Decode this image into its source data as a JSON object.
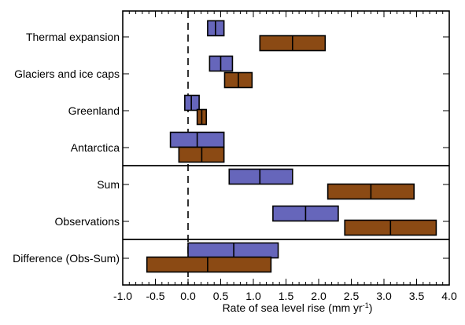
{
  "chart_data": {
    "type": "bar",
    "orientation": "horizontal",
    "chart_style": "range boxes with central estimate",
    "xlabel": "Rate of sea level rise (mm yr",
    "xlabel_superscript": "-1",
    "xlabel_suffix": ")",
    "xlim": [
      -1.0,
      4.0
    ],
    "xticks": [
      "-1.0",
      "-0.5",
      "0.0",
      "0.5",
      "1.0",
      "1.5",
      "2.0",
      "2.5",
      "3.0",
      "3.5",
      "4.0"
    ],
    "zero_line": "dashed",
    "grid": false,
    "legend": "none",
    "categories": [
      "Thermal expansion",
      "Glaciers and ice caps",
      "Greenland",
      "Antarctica",
      "Sum",
      "Observations",
      "Difference (Obs-Sum)"
    ],
    "group_separators": [
      "between Antarctica and Sum",
      "between Observations and Difference (Obs-Sum)"
    ],
    "series": [
      {
        "color": "#6666BB",
        "ranges": [
          {
            "category": "Thermal expansion",
            "low": 0.3,
            "mid": 0.42,
            "high": 0.55
          },
          {
            "category": "Glaciers and ice caps",
            "low": 0.33,
            "mid": 0.5,
            "high": 0.68
          },
          {
            "category": "Greenland",
            "low": -0.05,
            "mid": 0.05,
            "high": 0.17
          },
          {
            "category": "Antarctica",
            "low": -0.27,
            "mid": 0.14,
            "high": 0.55
          },
          {
            "category": "Sum",
            "low": 0.63,
            "mid": 1.1,
            "high": 1.6
          },
          {
            "category": "Observations",
            "low": 1.3,
            "mid": 1.8,
            "high": 2.3
          },
          {
            "category": "Difference (Obs-Sum)",
            "low": 0.0,
            "mid": 0.7,
            "high": 1.38
          }
        ]
      },
      {
        "color": "#8B4A14",
        "ranges": [
          {
            "category": "Thermal expansion",
            "low": 1.1,
            "mid": 1.6,
            "high": 2.1
          },
          {
            "category": "Glaciers and ice caps",
            "low": 0.56,
            "mid": 0.77,
            "high": 0.98
          },
          {
            "category": "Greenland",
            "low": 0.14,
            "mid": 0.21,
            "high": 0.28
          },
          {
            "category": "Antarctica",
            "low": -0.14,
            "mid": 0.21,
            "high": 0.55
          },
          {
            "category": "Sum",
            "low": 2.14,
            "mid": 2.8,
            "high": 3.46
          },
          {
            "category": "Observations",
            "low": 2.4,
            "mid": 3.1,
            "high": 3.8
          },
          {
            "category": "Difference (Obs-Sum)",
            "low": -0.63,
            "mid": 0.3,
            "high": 1.27
          }
        ]
      }
    ]
  }
}
